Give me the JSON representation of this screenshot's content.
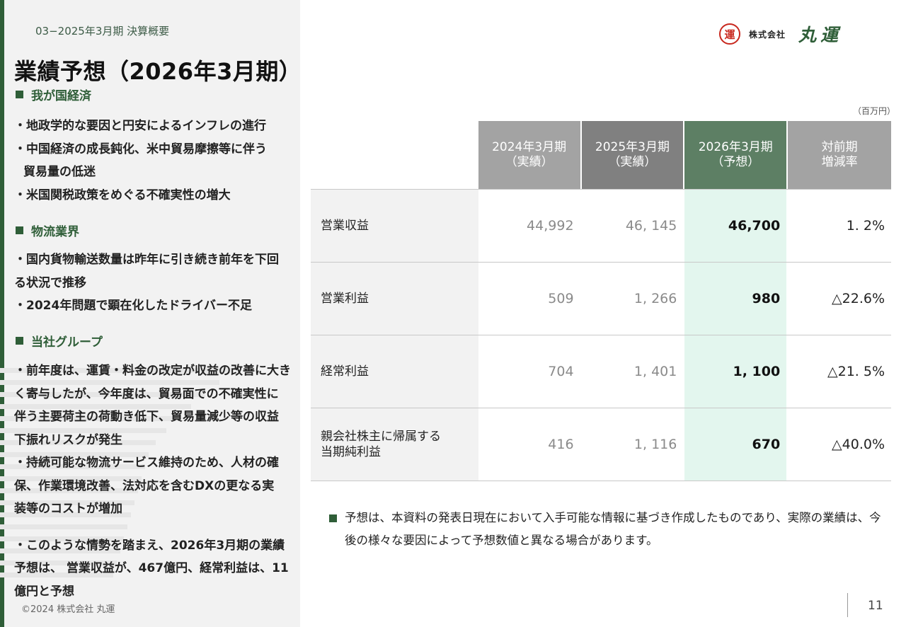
{
  "section_label": "03−2025年3月期 決算概要",
  "title": "業績予想（2026年3月期）",
  "sections": [
    {
      "heading": "我が国経済",
      "bullets": [
        [
          "・地政学的な要因と円安によるインフレの進行"
        ],
        [
          "・中国経済の成長鈍化、米中貿易摩擦等に伴う",
          "貿易量の低迷"
        ],
        [
          "・米国関税政策をめぐる不確実性の増大"
        ]
      ]
    },
    {
      "heading": "物流業界",
      "bullets": [
        [
          "・国内貨物輸送数量は昨年に引き続き前年を下回",
          "る状況で推移"
        ],
        [
          "・2024年問題で顕在化したドライバー不足"
        ]
      ]
    },
    {
      "heading": "当社グループ",
      "bullets": [
        [
          "・前年度は、運賃・料金の改定が収益の改善に大き",
          "く寄与したが、今年度は、貿易面での不確実性に",
          "伴う主要荷主の荷動き低下、貿易量減少等の収益",
          "下振れリスクが発生"
        ],
        [
          "・持続可能な物流サービス維持のため、人材の確",
          "保、作業環境改善、法対応を含むDXの更なる実",
          "装等のコストが増加"
        ],
        [
          "・このような情勢を踏まえ、2026年3月期の業績",
          "予想は、 営業収益が、467億円、経常利益は、11",
          "億円と予想"
        ]
      ]
    }
  ],
  "copyright": "©2024 株式会社 丸運",
  "logo": {
    "seal": "運",
    "kabushiki": "株式会社",
    "name": "丸運"
  },
  "unit": "（百万円）",
  "table": {
    "headers": [
      {
        "text": "2024年3月期\n（実績）",
        "color": "#a3a3a3"
      },
      {
        "text": "2025年3月期\n（実績）",
        "color": "#808080"
      },
      {
        "text": "2026年3月期\n（予想）",
        "color": "#5d7f64"
      },
      {
        "text": "対前期\n増減率",
        "color": "#a3a3a3"
      }
    ],
    "rows": [
      {
        "label": "営業収益",
        "fy2024": "44,992",
        "fy2025": "46, 145",
        "fy2026": "46,700",
        "change": "1. 2%"
      },
      {
        "label": "営業利益",
        "fy2024": "509",
        "fy2025": "1, 266",
        "fy2026": "980",
        "change": "△22.6%"
      },
      {
        "label": "経常利益",
        "fy2024": "704",
        "fy2025": "1, 401",
        "fy2026": "1, 100",
        "change": "△21. 5%"
      },
      {
        "label": "親会社株主に帰属する\n当期純利益",
        "fy2024": "416",
        "fy2025": "1, 116",
        "fy2026": "670",
        "change": "△40.0%"
      }
    ]
  },
  "note": "予想は、本資料の発表日現在において入手可能な情報に基づき作成したものであり、実際の業績は、今後の様々な要因によって予想数値と異なる場合があります。",
  "page_number": "11"
}
